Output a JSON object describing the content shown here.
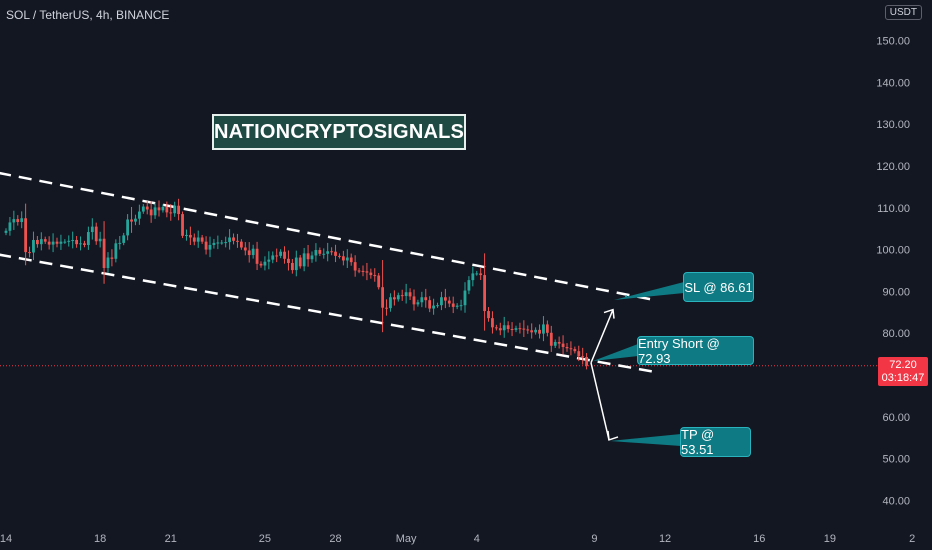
{
  "header": {
    "symbol": "SOL / TetherUS, 4h, BINANCE",
    "currency": "USDT"
  },
  "watermark": "NATIONCRYPTOSIGNALS",
  "last_price": {
    "value": "72.20",
    "countdown": "03:18:47"
  },
  "callouts": {
    "sl": "SL @ 86.61",
    "entry": "Entry Short @ 72.93",
    "tp": "TP @ 53.51"
  },
  "colors": {
    "up": "#26a69a",
    "down": "#ef5350",
    "accent": "#0e7a83",
    "background": "#131722"
  },
  "chart_data": {
    "type": "candlestick",
    "y_axis": {
      "min": 35,
      "max": 155,
      "ticks": [
        "150.00",
        "140.00",
        "130.00",
        "120.00",
        "110.00",
        "100.00",
        "90.00",
        "80.00",
        "70.00",
        "60.00",
        "50.00",
        "40.00"
      ]
    },
    "x_axis": {
      "ticks": [
        {
          "label": "14",
          "index": 0
        },
        {
          "label": "18",
          "index": 24
        },
        {
          "label": "21",
          "index": 42
        },
        {
          "label": "25",
          "index": 66
        },
        {
          "label": "28",
          "index": 84
        },
        {
          "label": "May",
          "index": 102
        },
        {
          "label": "4",
          "index": 120
        },
        {
          "label": "9",
          "index": 150
        },
        {
          "label": "12",
          "index": 168
        },
        {
          "label": "16",
          "index": 192
        },
        {
          "label": "19",
          "index": 210
        },
        {
          "label": "2",
          "index": 231
        }
      ]
    },
    "closes": [
      104.5,
      106.5,
      107.3,
      106.6,
      107.5,
      99.4,
      99.3,
      102.3,
      101.3,
      102.5,
      101.9,
      101.2,
      101.9,
      101.4,
      101.9,
      101.9,
      102.1,
      102.3,
      101.3,
      101.5,
      101.1,
      104.2,
      105.5,
      102.0,
      102.6,
      95.6,
      98.1,
      97.8,
      101.5,
      101.6,
      103.4,
      107.2,
      106.7,
      107.4,
      109.1,
      110.3,
      109.6,
      108.2,
      110.1,
      109.4,
      110.2,
      108.9,
      108.7,
      110.5,
      108.5,
      103.3,
      103.5,
      102.9,
      101.9,
      102.9,
      101.9,
      100.0,
      101.1,
      101.6,
      101.7,
      101.7,
      101.8,
      102.9,
      102.1,
      101.9,
      100.5,
      99.8,
      98.7,
      100.2,
      96.6,
      96.2,
      97.1,
      97.6,
      98.6,
      98.5,
      99.5,
      97.8,
      96.8,
      95.1,
      98.1,
      96.0,
      99.1,
      97.7,
      98.6,
      99.9,
      99.0,
      99.0,
      99.6,
      99.5,
      98.5,
      98.4,
      97.4,
      98.1,
      97.0,
      95.0,
      94.9,
      94.8,
      94.5,
      93.9,
      93.8,
      91.0,
      86.1,
      86.0,
      88.6,
      88.1,
      89.1,
      88.9,
      89.8,
      88.8,
      86.9,
      87.4,
      88.6,
      87.9,
      85.9,
      86.6,
      86.7,
      88.6,
      87.8,
      87.1,
      86.3,
      86.6,
      86.7,
      90.2,
      92.7,
      94.3,
      94.3,
      93.9,
      85.3,
      83.6,
      81.4,
      81.2,
      80.7,
      81.9,
      81.0,
      80.8,
      81.2,
      81.1,
      80.9,
      80.7,
      80.2,
      80.8,
      79.9,
      82.1,
      80.1,
      77.0,
      77.9,
      77.5,
      76.7,
      76.4,
      76.2,
      75.7,
      74.5,
      74.3,
      72.2
    ],
    "channel": {
      "upper": [
        {
          "index": 0,
          "price": 118
        },
        {
          "index": 165,
          "price": 88
        }
      ],
      "lower": [
        {
          "index": 0,
          "price": 98.5
        },
        {
          "index": 165,
          "price": 70.8
        }
      ]
    },
    "trade": {
      "entry": 72.93,
      "stop_loss": 86.61,
      "take_profit": 53.51
    }
  }
}
